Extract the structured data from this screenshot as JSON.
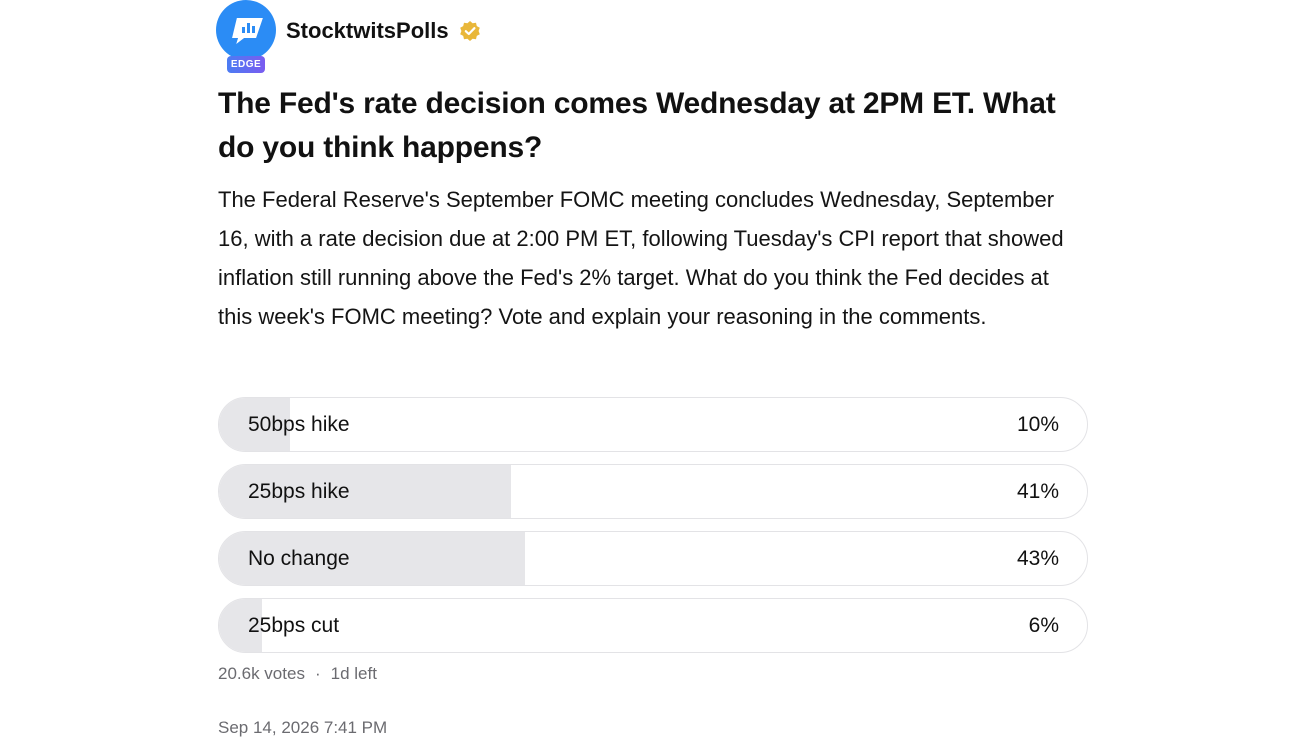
{
  "post": {
    "username": "StocktwitsPolls",
    "badge": "EDGE",
    "title": "The Fed's rate decision comes Wednesday at 2PM ET. What do you think happens?",
    "description": "The Federal Reserve's September FOMC meeting concludes Wednesday, September 16, with a rate decision due at 2:00 PM ET, following Tuesday's CPI report that showed inflation still running above the Fed's 2% target. What do you think the Fed decides at this week's FOMC meeting? Vote and explain your reasoning in the comments.",
    "poll": {
      "options": [
        {
          "label": "50bps hike",
          "percent_label": "10%",
          "percent": 10
        },
        {
          "label": "25bps hike",
          "percent_label": "41%",
          "percent": 41
        },
        {
          "label": "No change",
          "percent_label": "43%",
          "percent": 43
        },
        {
          "label": "25bps cut",
          "percent_label": "6%",
          "percent": 6
        }
      ],
      "votes": "20.6k votes",
      "separator": "·",
      "time_left": "1d left"
    },
    "timestamp": "Sep 14, 2026 7:41 PM"
  },
  "colors": {
    "avatar_blue": "#2b8cf5",
    "verified_gold": "#e9b73a",
    "bar_fill": "#e6e6e9",
    "muted_text": "#6b6b70"
  },
  "icons": {
    "avatar": "stocktwits-chat-bubble-icon",
    "verified": "verified-check-icon"
  }
}
